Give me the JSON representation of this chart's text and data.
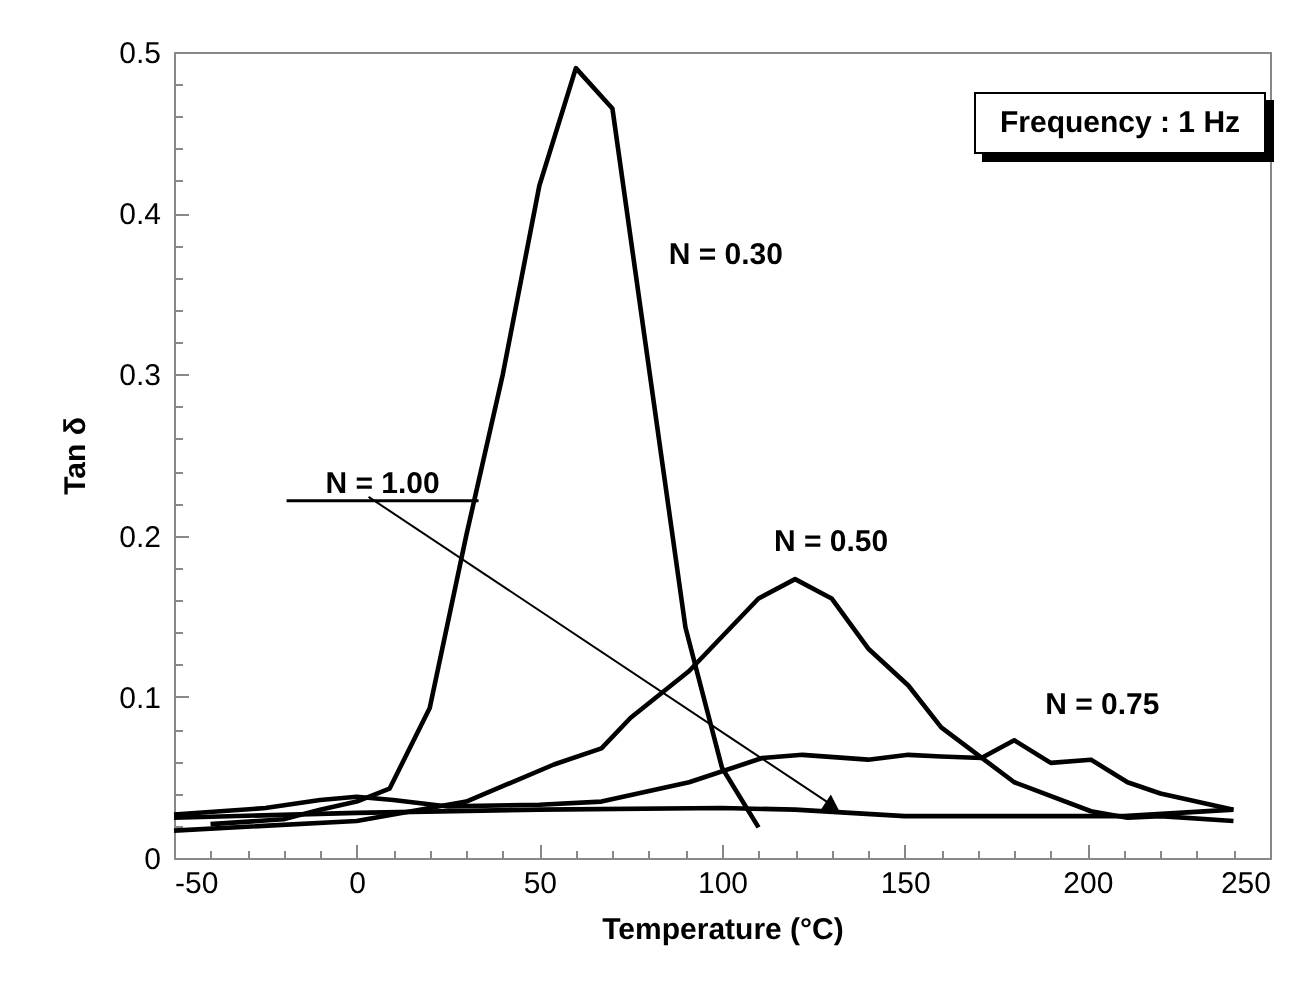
{
  "chart_data": {
    "type": "line",
    "xlabel": "Temperature (°C)",
    "ylabel": "Tan δ",
    "xlim": [
      -50,
      250
    ],
    "ylim": [
      0,
      0.5
    ],
    "xticks": [
      -50,
      {
        "value": -40,
        "label": null
      },
      {
        "value": -30,
        "label": null
      },
      {
        "value": -20,
        "label": null
      },
      {
        "value": -10,
        "label": null
      },
      0,
      {
        "value": 10,
        "label": null
      },
      {
        "value": 20,
        "label": null
      },
      {
        "value": 30,
        "label": null
      },
      {
        "value": 40,
        "label": null
      },
      50,
      {
        "value": 60,
        "label": null
      },
      {
        "value": 70,
        "label": null
      },
      {
        "value": 80,
        "label": null
      },
      {
        "value": 90,
        "label": null
      },
      100,
      {
        "value": 110,
        "label": null
      },
      {
        "value": 120,
        "label": null
      },
      {
        "value": 130,
        "label": null
      },
      {
        "value": 140,
        "label": null
      },
      150,
      {
        "value": 160,
        "label": null
      },
      {
        "value": 170,
        "label": null
      },
      {
        "value": 180,
        "label": null
      },
      {
        "value": 190,
        "label": null
      },
      200,
      {
        "value": 210,
        "label": null
      },
      {
        "value": 220,
        "label": null
      },
      {
        "value": 230,
        "label": null
      },
      {
        "value": 240,
        "label": null
      },
      250
    ],
    "yticks": [
      0,
      {
        "value": 0.02,
        "label": null
      },
      {
        "value": 0.04,
        "label": null
      },
      {
        "value": 0.06,
        "label": null
      },
      {
        "value": 0.08,
        "label": null
      },
      0.1,
      {
        "value": 0.12,
        "label": null
      },
      {
        "value": 0.14,
        "label": null
      },
      {
        "value": 0.16,
        "label": null
      },
      {
        "value": 0.18,
        "label": null
      },
      0.2,
      {
        "value": 0.22,
        "label": null
      },
      {
        "value": 0.24,
        "label": null
      },
      {
        "value": 0.26,
        "label": null
      },
      {
        "value": 0.28,
        "label": null
      },
      0.3,
      {
        "value": 0.32,
        "label": null
      },
      {
        "value": 0.34,
        "label": null
      },
      {
        "value": 0.36,
        "label": null
      },
      {
        "value": 0.38,
        "label": null
      },
      0.4,
      {
        "value": 0.42,
        "label": null
      },
      {
        "value": 0.44,
        "label": null
      },
      {
        "value": 0.46,
        "label": null
      },
      {
        "value": 0.48,
        "label": null
      },
      0.5
    ],
    "grid": false,
    "legend": false,
    "marker": "none",
    "line_style": "solid",
    "series": [
      {
        "name": "N = 0.30",
        "color": "#000000",
        "x": [
          -40,
          -20,
          -10,
          0,
          9,
          20,
          30,
          40,
          50,
          60,
          70,
          90,
          100,
          110
        ],
        "values": [
          0.021,
          0.024,
          0.03,
          0.035,
          0.043,
          0.093,
          0.2,
          0.3,
          0.417,
          0.49,
          0.465,
          0.143,
          0.056,
          0.019
        ]
      },
      {
        "name": "N = 0.50",
        "color": "#000000",
        "x": [
          -50,
          0,
          30,
          54,
          67,
          75,
          91,
          110,
          120,
          130,
          140,
          151,
          160,
          180,
          201,
          211,
          220,
          240
        ],
        "values": [
          0.017,
          0.023,
          0.035,
          0.058,
          0.068,
          0.087,
          0.116,
          0.161,
          0.173,
          0.161,
          0.13,
          0.107,
          0.081,
          0.047,
          0.029,
          0.025,
          0.026,
          0.023
        ]
      },
      {
        "name": "N = 0.75",
        "color": "#000000",
        "x": [
          -50,
          -25,
          -10,
          0,
          10,
          25,
          50,
          67,
          91,
          111,
          122,
          140,
          151,
          160,
          171,
          180,
          190,
          201,
          211,
          220,
          240
        ],
        "values": [
          0.027,
          0.031,
          0.036,
          0.038,
          0.036,
          0.032,
          0.033,
          0.035,
          0.047,
          0.062,
          0.064,
          0.061,
          0.064,
          0.063,
          0.062,
          0.073,
          0.059,
          0.061,
          0.047,
          0.04,
          0.03
        ]
      },
      {
        "color": "#000000",
        "x": [
          -50,
          0,
          50,
          100,
          120,
          150,
          210,
          240
        ],
        "values": [
          0.025,
          0.028,
          0.03,
          0.031,
          0.03,
          0.026,
          0.026,
          0.03
        ]
      }
    ],
    "annotations": [
      "Frequency : 1 Hz",
      {
        "text": "N = 1.00",
        "x": 133,
        "y": 0.028
      }
    ]
  }
}
